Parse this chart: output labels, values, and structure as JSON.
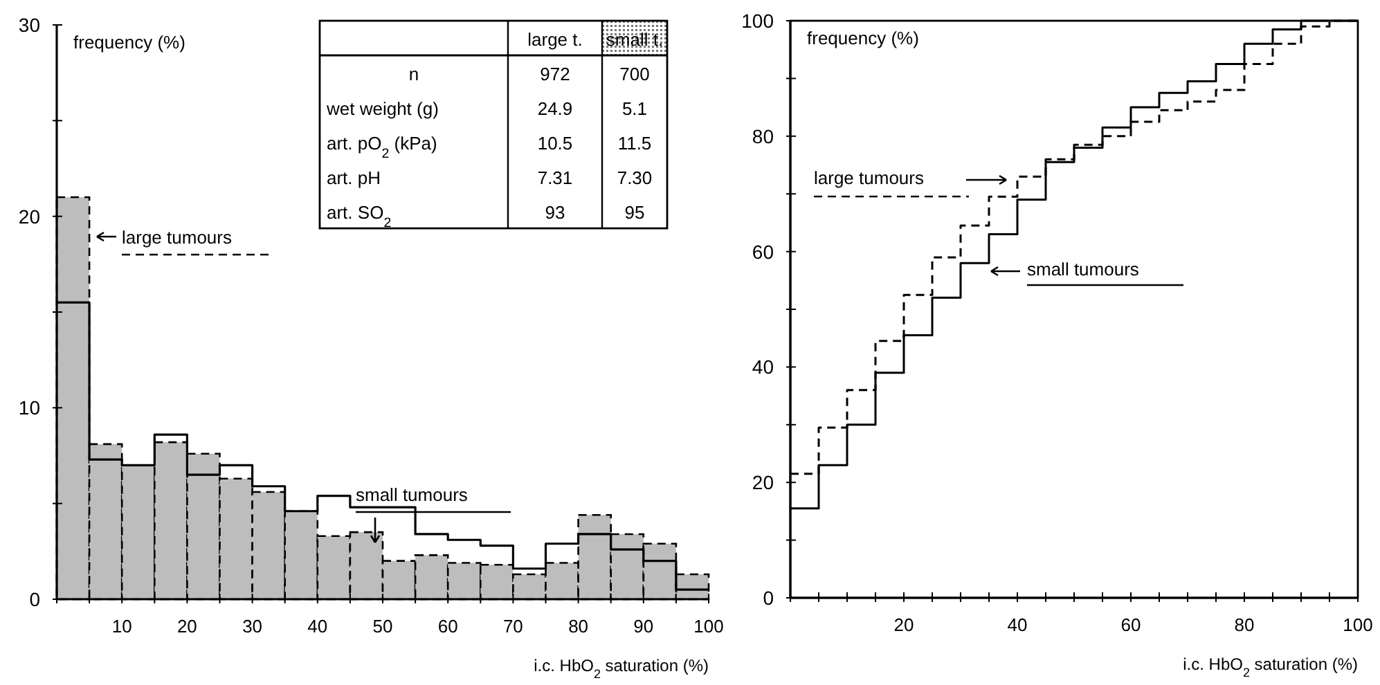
{
  "chart_data": [
    {
      "type": "histogram",
      "ylabel": "frequency (%)",
      "xlabel": "i.c. HbO$_{2}$ saturation (%)",
      "bins": [
        0,
        5,
        10,
        15,
        20,
        25,
        30,
        35,
        40,
        45,
        50,
        55,
        60,
        65,
        70,
        75,
        80,
        85,
        90,
        95,
        100
      ],
      "series": [
        {
          "name": "large tumours",
          "type": "histogram",
          "color": "#bdbdbd",
          "line_style": "dashed",
          "values": [
            21,
            8.1,
            7,
            8.2,
            7.6,
            6.3,
            5.6,
            4.6,
            3.3,
            3.5,
            2,
            2.3,
            1.9,
            1.8,
            1.3,
            1.9,
            4.4,
            3.4,
            2.9,
            1.3
          ]
        },
        {
          "name": "small tumours",
          "type": "step",
          "color": "#000000",
          "line_style": "solid",
          "x": [
            0,
            5,
            10,
            15,
            20,
            25,
            30,
            35,
            40,
            45,
            50,
            55,
            60,
            65,
            70,
            75,
            80,
            85,
            90,
            95,
            100
          ],
          "values": [
            15.5,
            7.3,
            7,
            8.6,
            6.5,
            7,
            5.9,
            4.6,
            5.4,
            4.8,
            4.8,
            3.4,
            3.1,
            2.8,
            1.6,
            2.9,
            3.4,
            2.6,
            2,
            0.5,
            0.5
          ]
        }
      ],
      "xlim": [
        0,
        100
      ],
      "ylim": [
        0,
        30
      ],
      "xticks": [
        {
          "value": 0,
          "label": null
        },
        {
          "value": 5,
          "label": null
        },
        10,
        {
          "value": 15,
          "label": null
        },
        20,
        {
          "value": 25,
          "label": null
        },
        30,
        {
          "value": 35,
          "label": null
        },
        40,
        {
          "value": 45,
          "label": null
        },
        50,
        {
          "value": 55,
          "label": null
        },
        60,
        {
          "value": 65,
          "label": null
        },
        70,
        {
          "value": 75,
          "label": null
        },
        80,
        {
          "value": 85,
          "label": null
        },
        90,
        {
          "value": 95,
          "label": null
        },
        100
      ],
      "yticks": [
        0,
        {
          "value": 5,
          "label": null
        },
        10,
        {
          "value": 15,
          "label": null
        },
        20,
        {
          "value": 25,
          "label": null
        },
        30
      ]
    },
    {
      "type": "other",
      "categories": [
        "large t.",
        "small t."
      ],
      "y_categories": [
        "n",
        "wet weight (g)",
        "art. pO$_{2}$ (kPa)",
        "art. pH",
        "art. SO$_{2}$"
      ],
      "cell_labels": [
        [
          "972",
          "700"
        ],
        [
          "24.9",
          "5.1"
        ],
        [
          "10.5",
          "11.5"
        ],
        [
          "7.31",
          "7.30"
        ],
        [
          "93",
          "95"
        ]
      ]
    },
    {
      "type": "step",
      "ylabel": "frequency (%)",
      "xlabel": "i.c. HbO$_{2}$ saturation (%)",
      "x": [
        0,
        5,
        10,
        15,
        20,
        25,
        30,
        35,
        40,
        45,
        50,
        55,
        60,
        65,
        70,
        75,
        80,
        85,
        90,
        95,
        100
      ],
      "series": [
        {
          "name": "large tumours",
          "color": "#000000",
          "line_style": "dashed",
          "values": [
            21.5,
            29.5,
            36,
            44.5,
            52.5,
            59,
            64.5,
            69.5,
            73,
            76,
            78.5,
            80,
            82.5,
            84.5,
            86,
            88,
            92.5,
            96,
            99,
            100,
            100
          ]
        },
        {
          "name": "small tumours",
          "color": "#000000",
          "line_style": "solid",
          "values": [
            15.5,
            23,
            30,
            39,
            45.5,
            52,
            58,
            63,
            69,
            75.5,
            78,
            81.5,
            85,
            87.5,
            89.5,
            92.5,
            96,
            98.5,
            100,
            100,
            100
          ]
        }
      ],
      "xlim": [
        0,
        100
      ],
      "ylim": [
        0,
        100
      ],
      "xticks": [
        {
          "value": 0,
          "label": null
        },
        {
          "value": 5,
          "label": null
        },
        {
          "value": 10,
          "label": null
        },
        {
          "value": 15,
          "label": null
        },
        20,
        {
          "value": 25,
          "label": null
        },
        {
          "value": 30,
          "label": null
        },
        {
          "value": 35,
          "label": null
        },
        40,
        {
          "value": 45,
          "label": null
        },
        {
          "value": 50,
          "label": null
        },
        {
          "value": 55,
          "label": null
        },
        60,
        {
          "value": 65,
          "label": null
        },
        {
          "value": 70,
          "label": null
        },
        {
          "value": 75,
          "label": null
        },
        80,
        {
          "value": 85,
          "label": null
        },
        {
          "value": 90,
          "label": null
        },
        {
          "value": 95,
          "label": null
        },
        100
      ],
      "yticks": [
        0,
        {
          "value": 10,
          "label": null
        },
        20,
        {
          "value": 30,
          "label": null
        },
        40,
        {
          "value": 50,
          "label": null
        },
        60,
        {
          "value": 70,
          "label": null
        },
        80,
        {
          "value": 90,
          "label": null
        },
        100
      ]
    }
  ]
}
